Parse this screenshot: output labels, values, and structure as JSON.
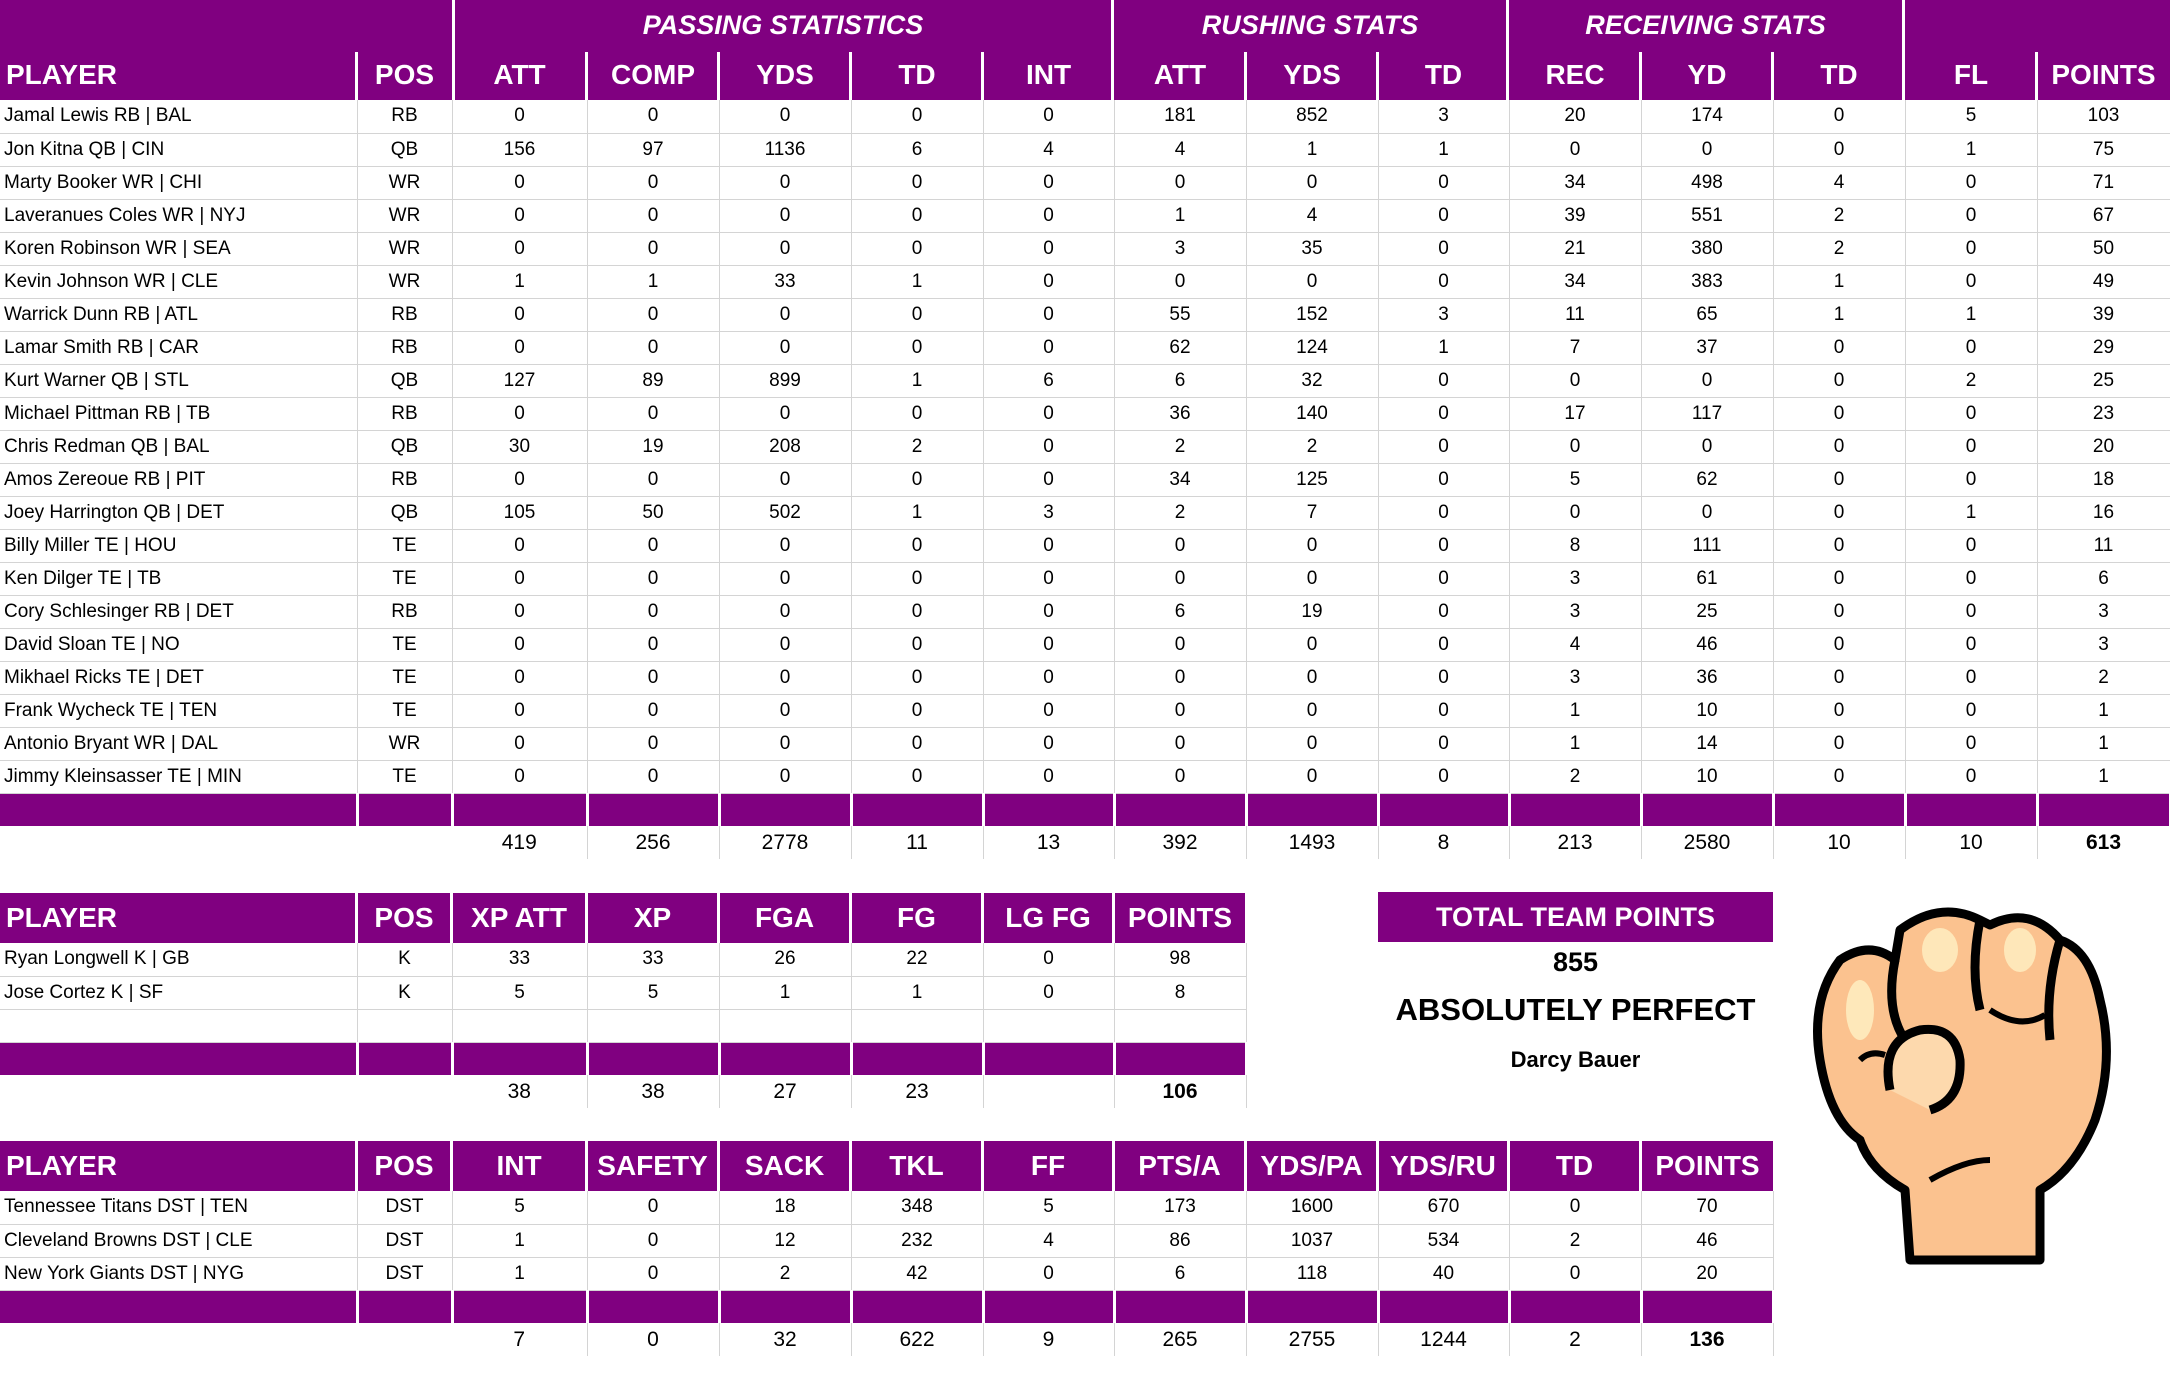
{
  "colors": {
    "accent": "#800080",
    "header_text": "#ffffff",
    "grid_line": "#d4d4d4"
  },
  "offense": {
    "group_headers": {
      "passing": "PASSING STATISTICS",
      "rushing": "RUSHING STATS",
      "receiving": "RECEIVING STATS"
    },
    "columns": [
      "PLAYER",
      "POS",
      "ATT",
      "COMP",
      "YDS",
      "TD",
      "INT",
      "ATT",
      "YDS",
      "TD",
      "REC",
      "YD",
      "TD",
      "FL",
      "POINTS"
    ],
    "rows": [
      [
        "Jamal Lewis RB | BAL",
        "RB",
        "0",
        "0",
        "0",
        "0",
        "0",
        "181",
        "852",
        "3",
        "20",
        "174",
        "0",
        "5",
        "103"
      ],
      [
        "Jon Kitna QB | CIN",
        "QB",
        "156",
        "97",
        "1136",
        "6",
        "4",
        "4",
        "1",
        "1",
        "0",
        "0",
        "0",
        "1",
        "75"
      ],
      [
        "Marty Booker WR | CHI",
        "WR",
        "0",
        "0",
        "0",
        "0",
        "0",
        "0",
        "0",
        "0",
        "34",
        "498",
        "4",
        "0",
        "71"
      ],
      [
        "Laveranues Coles WR | NYJ",
        "WR",
        "0",
        "0",
        "0",
        "0",
        "0",
        "1",
        "4",
        "0",
        "39",
        "551",
        "2",
        "0",
        "67"
      ],
      [
        "Koren Robinson WR | SEA",
        "WR",
        "0",
        "0",
        "0",
        "0",
        "0",
        "3",
        "35",
        "0",
        "21",
        "380",
        "2",
        "0",
        "50"
      ],
      [
        "Kevin Johnson WR | CLE",
        "WR",
        "1",
        "1",
        "33",
        "1",
        "0",
        "0",
        "0",
        "0",
        "34",
        "383",
        "1",
        "0",
        "49"
      ],
      [
        "Warrick Dunn RB | ATL",
        "RB",
        "0",
        "0",
        "0",
        "0",
        "0",
        "55",
        "152",
        "3",
        "11",
        "65",
        "1",
        "1",
        "39"
      ],
      [
        "Lamar Smith RB | CAR",
        "RB",
        "0",
        "0",
        "0",
        "0",
        "0",
        "62",
        "124",
        "1",
        "7",
        "37",
        "0",
        "0",
        "29"
      ],
      [
        "Kurt Warner QB | STL",
        "QB",
        "127",
        "89",
        "899",
        "1",
        "6",
        "6",
        "32",
        "0",
        "0",
        "0",
        "0",
        "2",
        "25"
      ],
      [
        "Michael Pittman RB | TB",
        "RB",
        "0",
        "0",
        "0",
        "0",
        "0",
        "36",
        "140",
        "0",
        "17",
        "117",
        "0",
        "0",
        "23"
      ],
      [
        "Chris Redman QB | BAL",
        "QB",
        "30",
        "19",
        "208",
        "2",
        "0",
        "2",
        "2",
        "0",
        "0",
        "0",
        "0",
        "0",
        "20"
      ],
      [
        "Amos Zereoue RB | PIT",
        "RB",
        "0",
        "0",
        "0",
        "0",
        "0",
        "34",
        "125",
        "0",
        "5",
        "62",
        "0",
        "0",
        "18"
      ],
      [
        "Joey Harrington QB | DET",
        "QB",
        "105",
        "50",
        "502",
        "1",
        "3",
        "2",
        "7",
        "0",
        "0",
        "0",
        "0",
        "1",
        "16"
      ],
      [
        "Billy Miller TE | HOU",
        "TE",
        "0",
        "0",
        "0",
        "0",
        "0",
        "0",
        "0",
        "0",
        "8",
        "111",
        "0",
        "0",
        "11"
      ],
      [
        "Ken Dilger TE | TB",
        "TE",
        "0",
        "0",
        "0",
        "0",
        "0",
        "0",
        "0",
        "0",
        "3",
        "61",
        "0",
        "0",
        "6"
      ],
      [
        "Cory Schlesinger RB | DET",
        "RB",
        "0",
        "0",
        "0",
        "0",
        "0",
        "6",
        "19",
        "0",
        "3",
        "25",
        "0",
        "0",
        "3"
      ],
      [
        "David Sloan TE | NO",
        "TE",
        "0",
        "0",
        "0",
        "0",
        "0",
        "0",
        "0",
        "0",
        "4",
        "46",
        "0",
        "0",
        "3"
      ],
      [
        "Mikhael Ricks TE | DET",
        "TE",
        "0",
        "0",
        "0",
        "0",
        "0",
        "0",
        "0",
        "0",
        "3",
        "36",
        "0",
        "0",
        "2"
      ],
      [
        "Frank Wycheck TE | TEN",
        "TE",
        "0",
        "0",
        "0",
        "0",
        "0",
        "0",
        "0",
        "0",
        "1",
        "10",
        "0",
        "0",
        "1"
      ],
      [
        "Antonio Bryant WR | DAL",
        "WR",
        "0",
        "0",
        "0",
        "0",
        "0",
        "0",
        "0",
        "0",
        "1",
        "14",
        "0",
        "0",
        "1"
      ],
      [
        "Jimmy Kleinsasser TE | MIN",
        "TE",
        "0",
        "0",
        "0",
        "0",
        "0",
        "0",
        "0",
        "0",
        "2",
        "10",
        "0",
        "0",
        "1"
      ]
    ],
    "totals": [
      "",
      "",
      "419",
      "256",
      "2778",
      "11",
      "13",
      "392",
      "1493",
      "8",
      "213",
      "2580",
      "10",
      "10",
      "613"
    ]
  },
  "kickers": {
    "columns": [
      "PLAYER",
      "POS",
      "XP ATT",
      "XP",
      "FGA",
      "FG",
      "LG FG",
      "POINTS"
    ],
    "rows": [
      [
        "Ryan Longwell K | GB",
        "K",
        "33",
        "33",
        "26",
        "22",
        "0",
        "98"
      ],
      [
        "Jose Cortez K | SF",
        "K",
        "5",
        "5",
        "1",
        "1",
        "0",
        "8"
      ],
      [
        "",
        "",
        "",
        "",
        "",
        "",
        "",
        ""
      ]
    ],
    "totals": [
      "",
      "",
      "38",
      "38",
      "27",
      "23",
      "",
      "106"
    ]
  },
  "summary": {
    "title": "TOTAL TEAM POINTS",
    "total": "855",
    "team_name": "ABSOLUTELY PERFECT",
    "owner": "Darcy Bauer",
    "image": "raised-fist-icon"
  },
  "defense": {
    "columns": [
      "PLAYER",
      "POS",
      "INT",
      "SAFETY",
      "SACK",
      "TKL",
      "FF",
      "PTS/A",
      "YDS/PA",
      "YDS/RU",
      "TD",
      "POINTS"
    ],
    "rows": [
      [
        "Tennessee Titans DST | TEN",
        "DST",
        "5",
        "0",
        "18",
        "348",
        "5",
        "173",
        "1600",
        "670",
        "0",
        "70"
      ],
      [
        "Cleveland Browns DST | CLE",
        "DST",
        "1",
        "0",
        "12",
        "232",
        "4",
        "86",
        "1037",
        "534",
        "2",
        "46"
      ],
      [
        "New York Giants DST | NYG",
        "DST",
        "1",
        "0",
        "2",
        "42",
        "0",
        "6",
        "118",
        "40",
        "0",
        "20"
      ]
    ],
    "totals": [
      "",
      "",
      "7",
      "0",
      "32",
      "622",
      "9",
      "265",
      "2755",
      "1244",
      "2",
      "136"
    ]
  }
}
